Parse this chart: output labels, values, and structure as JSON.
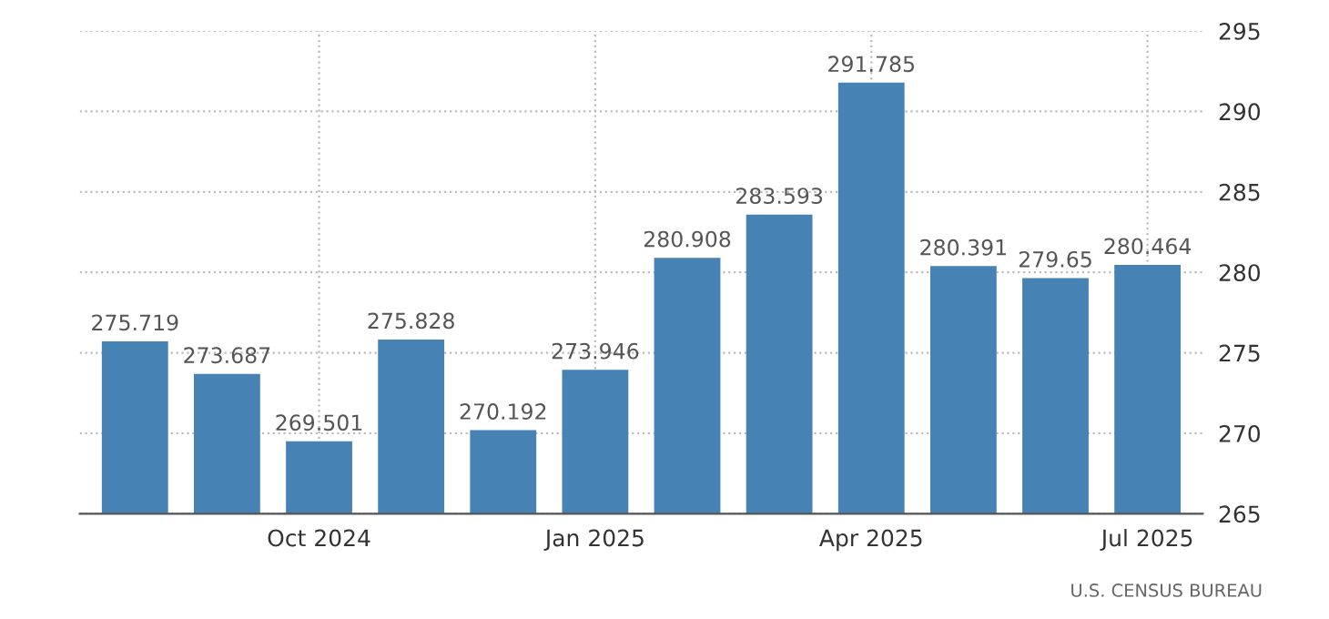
{
  "chart_data": {
    "type": "bar",
    "categories": [
      null,
      null,
      "Oct 2024",
      null,
      null,
      "Jan 2025",
      null,
      null,
      "Apr 2025",
      null,
      null,
      "Jul 2025"
    ],
    "values": [
      275.719,
      273.687,
      269.501,
      275.828,
      270.192,
      273.946,
      280.908,
      283.593,
      291.785,
      280.391,
      279.65,
      280.464
    ],
    "color": "#4682b4",
    "data_labels": true,
    "ylim": [
      265,
      295
    ],
    "yticks": [
      265,
      270,
      275,
      280,
      285,
      290,
      295
    ],
    "grid": true,
    "annotations": [
      "U.S. CENSUS BUREAU"
    ]
  }
}
